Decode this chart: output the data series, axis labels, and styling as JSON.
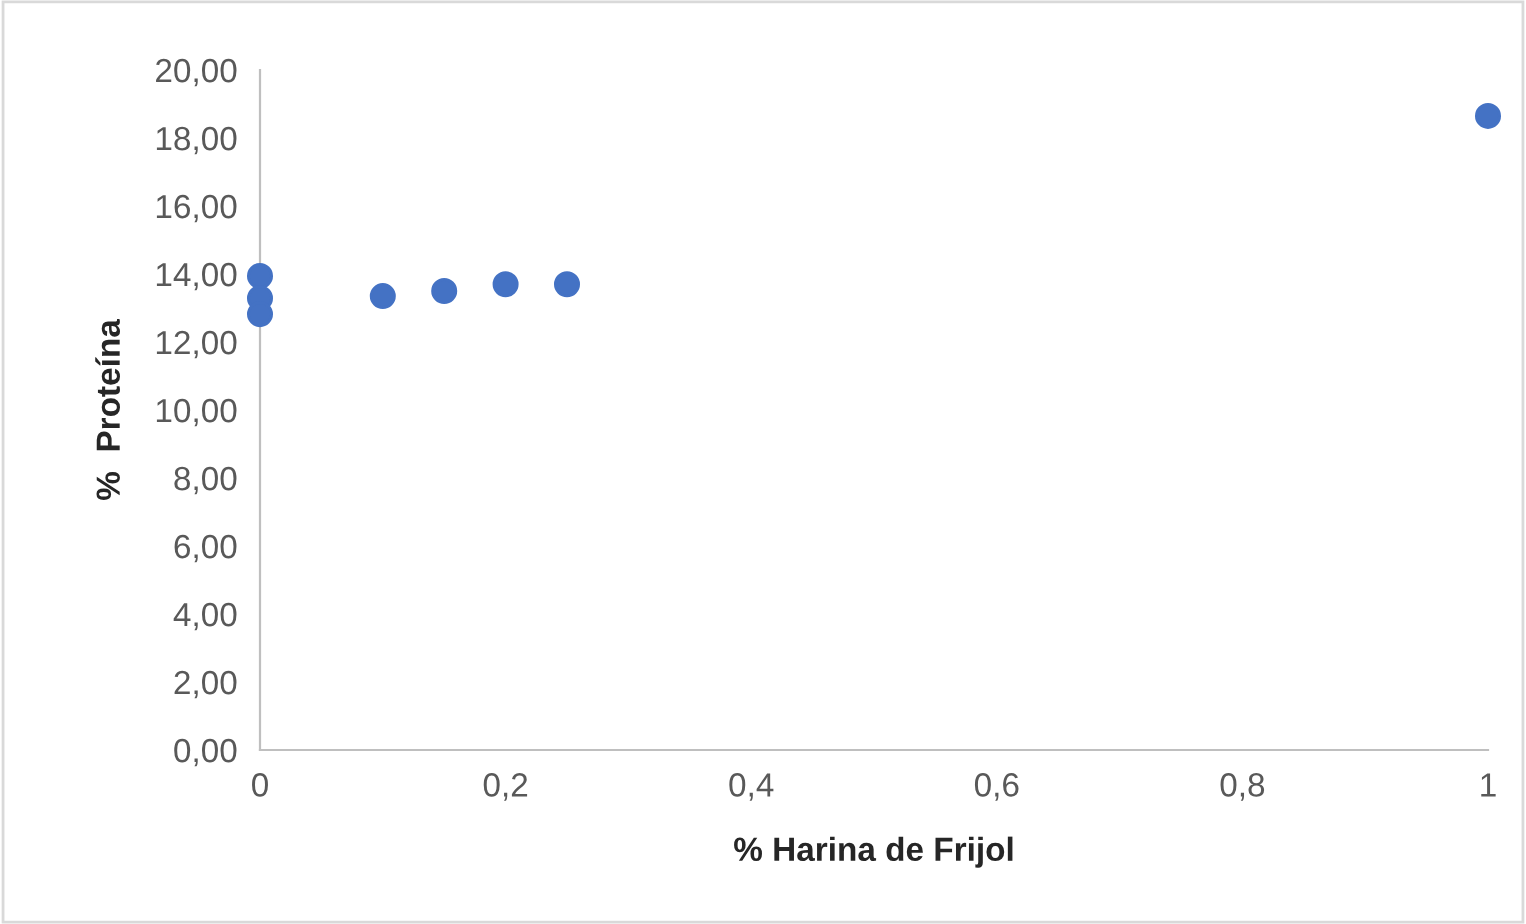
{
  "chart_data": {
    "type": "scatter",
    "xlabel": "% Harina de Frijol",
    "ylabel": "%  Proteína",
    "series": [
      {
        "color": "#4472c4",
        "x": [
          0,
          0,
          0,
          0.1,
          0.15,
          0.2,
          0.25,
          1
        ],
        "values": [
          13.94,
          13.29,
          12.82,
          13.35,
          13.5,
          13.7,
          13.7,
          18.65
        ]
      }
    ],
    "xlim": [
      0,
      1
    ],
    "xticks": [
      {
        "value": 0,
        "label": "0"
      },
      {
        "value": 0.2,
        "label": "0,2"
      },
      {
        "value": 0.4,
        "label": "0,4"
      },
      {
        "value": 0.6,
        "label": "0,6"
      },
      {
        "value": 0.8,
        "label": "0,8"
      },
      {
        "value": 1,
        "label": "1"
      }
    ],
    "ylim": [
      0,
      20
    ],
    "yticks": [
      {
        "value": 0,
        "label": "0,00"
      },
      {
        "value": 2,
        "label": "2,00"
      },
      {
        "value": 4,
        "label": "4,00"
      },
      {
        "value": 6,
        "label": "6,00"
      },
      {
        "value": 8,
        "label": "8,00"
      },
      {
        "value": 10,
        "label": "10,00"
      },
      {
        "value": 12,
        "label": "12,00"
      },
      {
        "value": 14,
        "label": "14,00"
      },
      {
        "value": 16,
        "label": "16,00"
      },
      {
        "value": 18,
        "label": "18,00"
      },
      {
        "value": 20,
        "label": "20,00"
      }
    ],
    "marker": "circle",
    "grid": false,
    "legend": false
  }
}
